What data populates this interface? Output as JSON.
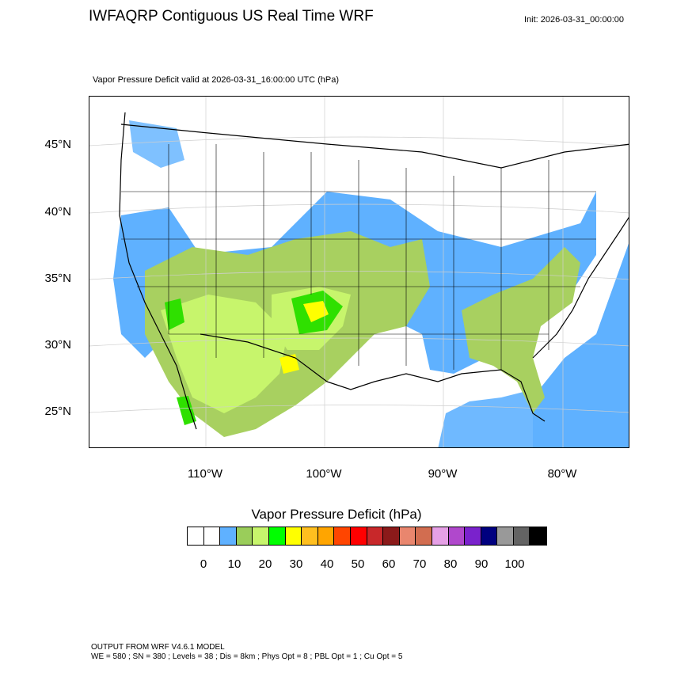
{
  "header": {
    "title": "IWFAQRP Contiguous US Real Time WRF",
    "init": "Init: 2026-03-31_00:00:00"
  },
  "map": {
    "subtitle": "Vapor Pressure Deficit valid at 2026-03-31_16:00:00 UTC   (hPa)",
    "lat_labels": [
      "45°N",
      "40°N",
      "35°N",
      "30°N",
      "25°N"
    ],
    "lon_labels": [
      "110°W",
      "100°W",
      "90°W",
      "80°W"
    ],
    "colors": {
      "ocean_blue": "#5fb1ff",
      "light_green": "#a8d060",
      "pale_green": "#c7f56c",
      "bright_green": "#2fe000",
      "yellow": "#ffff00"
    }
  },
  "colorbar": {
    "title": "Vapor Pressure Deficit  (hPa)",
    "ticks": [
      "0",
      "10",
      "20",
      "30",
      "40",
      "50",
      "60",
      "70",
      "80",
      "90",
      "100"
    ],
    "colors": [
      "#ffffff",
      "#ffffff",
      "#5fb1ff",
      "#9acd5a",
      "#c7f56c",
      "#00ff00",
      "#ffff00",
      "#ffbf1f",
      "#ffa500",
      "#ff4500",
      "#ff0000",
      "#c8282a",
      "#8b1a1a",
      "#e9866e",
      "#d26d50",
      "#e6a0e6",
      "#b048cc",
      "#7a22cc",
      "#00007f",
      "#999999",
      "#636363",
      "#000000"
    ]
  },
  "footer": {
    "line1": "OUTPUT FROM WRF V4.6.1 MODEL",
    "line2": "WE = 580 ; SN = 380 ; Levels = 38 ; Dis = 8km ; Phys Opt = 8 ; PBL Opt = 1 ; Cu Opt = 5"
  }
}
